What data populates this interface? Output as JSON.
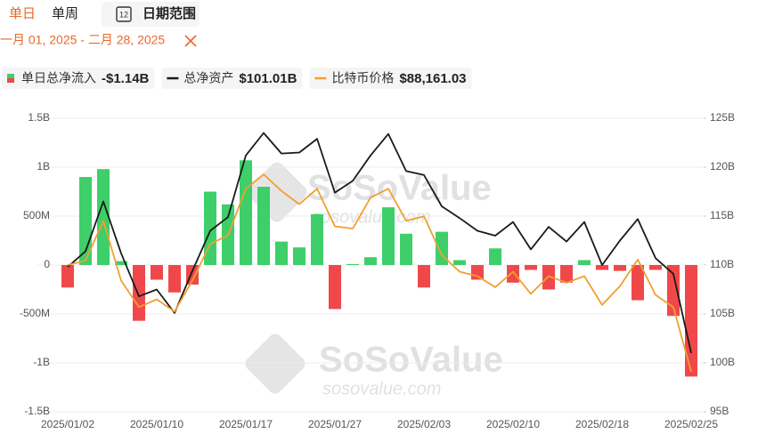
{
  "tabs": [
    "单日",
    "单周"
  ],
  "date_range_button": "日期范围",
  "date_range": "一月 01, 2025 - 二月 28, 2025",
  "watermark": [
    "SoSoValue",
    "sosovalue.com"
  ],
  "chart_data": {
    "type": "bar",
    "categories": [
      "2025/01/02",
      null,
      null,
      null,
      null,
      "2025/01/10",
      null,
      null,
      null,
      null,
      "2025/01/17",
      null,
      null,
      null,
      null,
      "2025/01/27",
      null,
      null,
      null,
      null,
      "2025/02/03",
      null,
      null,
      null,
      null,
      "2025/02/10",
      null,
      null,
      null,
      null,
      "2025/02/18",
      null,
      null,
      null,
      null,
      "2025/02/25"
    ],
    "series": [
      {
        "name": "单日总净流入",
        "type": "bar",
        "legend_value": "-$1.14B",
        "color": "#3ecf6a",
        "negative_color": "#f0484a",
        "values": [
          -230000000,
          900000000,
          980000000,
          40000000,
          -570000000,
          -150000000,
          -280000000,
          -200000000,
          750000000,
          620000000,
          1070000000,
          800000000,
          240000000,
          180000000,
          520000000,
          -450000000,
          10000000,
          80000000,
          590000000,
          320000000,
          -230000000,
          340000000,
          50000000,
          -150000000,
          170000000,
          -180000000,
          -50000000,
          -250000000,
          -180000000,
          50000000,
          -50000000,
          -60000000,
          -360000000,
          -50000000,
          -520000000,
          -1140000000
        ]
      },
      {
        "name": "总净资产",
        "type": "line",
        "axis": "y2",
        "legend_value": "$101.01B",
        "color": "#1a1a1a",
        "values": [
          109800000000,
          111400000000,
          116500000000,
          111200000000,
          106800000000,
          107500000000,
          105100000000,
          109400000000,
          113500000000,
          114900000000,
          121200000000,
          123500000000,
          121400000000,
          121500000000,
          122900000000,
          117400000000,
          118600000000,
          121200000000,
          123400000000,
          119600000000,
          119200000000,
          116000000000,
          114800000000,
          113500000000,
          113000000000,
          114400000000,
          111600000000,
          113900000000,
          112400000000,
          114400000000,
          110000000000,
          112500000000,
          114700000000,
          110700000000,
          109100000000,
          101010000000
        ]
      },
      {
        "name": "比特币价格",
        "type": "line",
        "axis": "y3",
        "legend_value": "$88,161.03",
        "color": "#f0a030",
        "values": [
          97800,
          98200,
          101800,
          96400,
          94000,
          94700,
          93600,
          96400,
          99700,
          100500,
          104700,
          106000,
          104500,
          103300,
          104700,
          101300,
          101100,
          103900,
          104700,
          101800,
          102200,
          98700,
          97200,
          96800,
          95800,
          97200,
          95200,
          96800,
          96200,
          96800,
          94200,
          95900,
          98300,
          95100,
          94000,
          88161.03
        ]
      }
    ],
    "ylim": [
      -1500000000,
      1500000000
    ],
    "yticks": [
      {
        "value": -1500000000,
        "label": "-1.5B"
      },
      {
        "value": -1000000000,
        "label": "-1B"
      },
      {
        "value": -500000000,
        "label": "-500M"
      },
      0,
      {
        "value": 500000000,
        "label": "500M"
      },
      {
        "value": 1000000000,
        "label": "1B"
      },
      {
        "value": 1500000000,
        "label": "1.5B"
      }
    ],
    "y2lim": [
      95000000000,
      125000000000
    ],
    "y2ticks": [
      {
        "value": 95000000000,
        "label": "95B"
      },
      {
        "value": 100000000000,
        "label": "100B"
      },
      {
        "value": 105000000000,
        "label": "105B"
      },
      {
        "value": 110000000000,
        "label": "110B"
      },
      {
        "value": 115000000000,
        "label": "115B"
      },
      {
        "value": 120000000000,
        "label": "120B"
      },
      {
        "value": 125000000000,
        "label": "125B"
      }
    ],
    "y3lim": [
      84545,
      111064
    ],
    "grid": true
  }
}
